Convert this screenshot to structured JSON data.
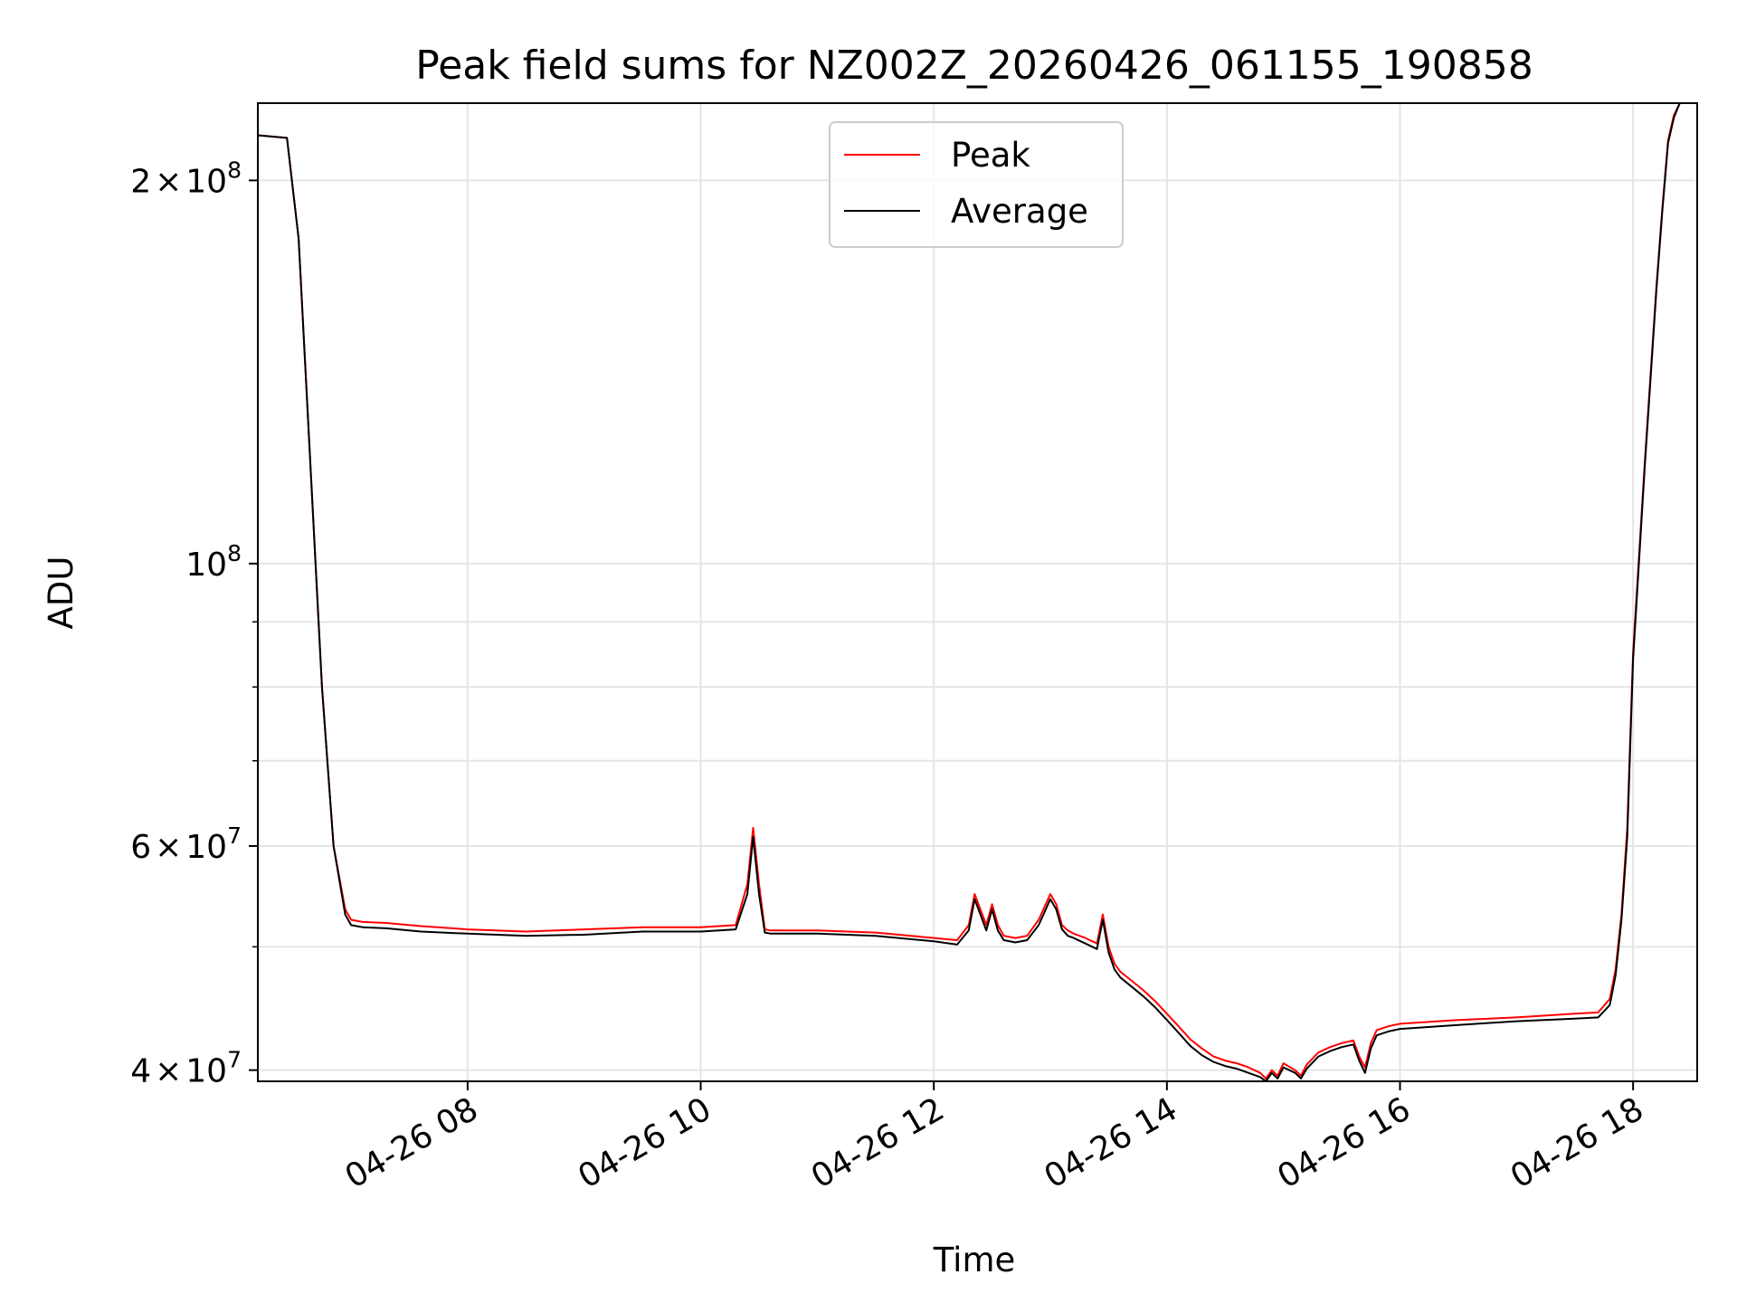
{
  "chart_data": {
    "type": "line",
    "title": "Peak field sums for NZ002Z_20260426_061155_190858",
    "xlabel": "Time",
    "ylabel": "ADU",
    "yscale": "log",
    "grid": true,
    "legend_position": "top-center",
    "x_unit": "hours (2026-04-26)",
    "xlim": [
      6.2,
      18.55
    ],
    "ylim": [
      39200000,
      230000000
    ],
    "x_ticks": [
      8,
      10,
      12,
      14,
      16,
      18
    ],
    "x_tick_labels": [
      "04-26 08",
      "04-26 10",
      "04-26 12",
      "04-26 14",
      "04-26 16",
      "04-26 18"
    ],
    "y_ticks": [
      {
        "value": 40000000,
        "mantissa": "4",
        "times": "×",
        "base": "10",
        "exponent": "7"
      },
      {
        "value": 60000000,
        "mantissa": "6",
        "times": "×",
        "base": "10",
        "exponent": "7"
      },
      {
        "value": 100000000,
        "mantissa": "",
        "times": "",
        "base": "10",
        "exponent": "8"
      },
      {
        "value": 200000000,
        "mantissa": "2",
        "times": "×",
        "base": "10",
        "exponent": "8"
      }
    ],
    "y_minor_ticks": [
      50000000,
      70000000,
      80000000,
      90000000
    ],
    "series": [
      {
        "name": "Peak",
        "color": "#ff0000",
        "x": [
          6.2,
          6.45,
          6.55,
          6.65,
          6.75,
          6.85,
          6.95,
          7.0,
          7.1,
          7.3,
          7.6,
          8.0,
          8.5,
          9.0,
          9.5,
          10.0,
          10.3,
          10.4,
          10.45,
          10.5,
          10.55,
          10.6,
          11.0,
          11.5,
          12.0,
          12.2,
          12.3,
          12.35,
          12.4,
          12.45,
          12.5,
          12.55,
          12.6,
          12.7,
          12.8,
          12.9,
          13.0,
          13.05,
          13.1,
          13.15,
          13.2,
          13.3,
          13.4,
          13.45,
          13.5,
          13.55,
          13.6,
          13.7,
          13.8,
          13.9,
          14.0,
          14.1,
          14.2,
          14.3,
          14.4,
          14.5,
          14.6,
          14.7,
          14.8,
          14.85,
          14.9,
          14.95,
          15.0,
          15.1,
          15.15,
          15.2,
          15.3,
          15.4,
          15.5,
          15.6,
          15.65,
          15.7,
          15.75,
          15.8,
          15.9,
          16.0,
          16.5,
          17.0,
          17.5,
          17.7,
          17.8,
          17.85,
          17.9,
          17.95,
          18.0,
          18.1,
          18.2,
          18.25,
          18.3,
          18.35,
          18.4,
          18.55
        ],
        "values": [
          217000000,
          216000000,
          180000000,
          120000000,
          80000000,
          60000000,
          53500000,
          52500000,
          52300000,
          52200000,
          51900000,
          51600000,
          51400000,
          51600000,
          51800000,
          51800000,
          52000000,
          56000000,
          62000000,
          56000000,
          51600000,
          51500000,
          51500000,
          51300000,
          50800000,
          50600000,
          52000000,
          55000000,
          53500000,
          52000000,
          54000000,
          52000000,
          51000000,
          50800000,
          51000000,
          52500000,
          55000000,
          54000000,
          52000000,
          51500000,
          51200000,
          50800000,
          50300000,
          53000000,
          50000000,
          48500000,
          47800000,
          47000000,
          46200000,
          45300000,
          44300000,
          43300000,
          42300000,
          41600000,
          41000000,
          40700000,
          40500000,
          40200000,
          39800000,
          39400000,
          40000000,
          39600000,
          40500000,
          40000000,
          39600000,
          40400000,
          41300000,
          41700000,
          42000000,
          42200000,
          41000000,
          40200000,
          42000000,
          43000000,
          43300000,
          43500000,
          43800000,
          44000000,
          44300000,
          44400000,
          45500000,
          48000000,
          53000000,
          62000000,
          85000000,
          120000000,
          165000000,
          190000000,
          215000000,
          225000000,
          230000000,
          230000000
        ]
      },
      {
        "name": "Average",
        "color": "#000000",
        "x": [
          6.2,
          6.45,
          6.55,
          6.65,
          6.75,
          6.85,
          6.95,
          7.0,
          7.1,
          7.3,
          7.6,
          8.0,
          8.5,
          9.0,
          9.5,
          10.0,
          10.3,
          10.4,
          10.45,
          10.5,
          10.55,
          10.6,
          11.0,
          11.5,
          12.0,
          12.2,
          12.3,
          12.35,
          12.4,
          12.45,
          12.5,
          12.55,
          12.6,
          12.7,
          12.8,
          12.9,
          13.0,
          13.05,
          13.1,
          13.15,
          13.2,
          13.3,
          13.4,
          13.45,
          13.5,
          13.55,
          13.6,
          13.7,
          13.8,
          13.9,
          14.0,
          14.1,
          14.2,
          14.3,
          14.4,
          14.5,
          14.6,
          14.7,
          14.8,
          14.85,
          14.9,
          14.95,
          15.0,
          15.1,
          15.15,
          15.2,
          15.3,
          15.4,
          15.5,
          15.6,
          15.65,
          15.7,
          15.75,
          15.8,
          15.9,
          16.0,
          16.5,
          17.0,
          17.5,
          17.7,
          17.8,
          17.85,
          17.9,
          17.95,
          18.0,
          18.1,
          18.2,
          18.25,
          18.3,
          18.35,
          18.4,
          18.55
        ],
        "values": [
          217000000,
          216000000,
          180000000,
          120000000,
          80000000,
          60000000,
          53000000,
          52000000,
          51800000,
          51700000,
          51400000,
          51200000,
          51000000,
          51100000,
          51400000,
          51400000,
          51600000,
          55000000,
          61000000,
          55000000,
          51300000,
          51200000,
          51200000,
          51000000,
          50500000,
          50200000,
          51500000,
          54500000,
          53000000,
          51500000,
          53500000,
          51500000,
          50600000,
          50400000,
          50600000,
          52000000,
          54500000,
          53500000,
          51600000,
          51000000,
          50800000,
          50300000,
          49800000,
          52500000,
          49500000,
          48000000,
          47300000,
          46500000,
          45700000,
          44800000,
          43800000,
          42800000,
          41800000,
          41100000,
          40600000,
          40300000,
          40100000,
          39800000,
          39500000,
          39200000,
          39800000,
          39400000,
          40200000,
          39800000,
          39400000,
          40100000,
          41000000,
          41400000,
          41700000,
          41900000,
          40700000,
          39800000,
          41600000,
          42600000,
          42900000,
          43100000,
          43400000,
          43700000,
          43900000,
          44000000,
          45000000,
          47500000,
          52500000,
          61000000,
          84000000,
          119000000,
          164000000,
          189000000,
          214000000,
          224000000,
          230000000,
          230000000
        ]
      }
    ]
  }
}
